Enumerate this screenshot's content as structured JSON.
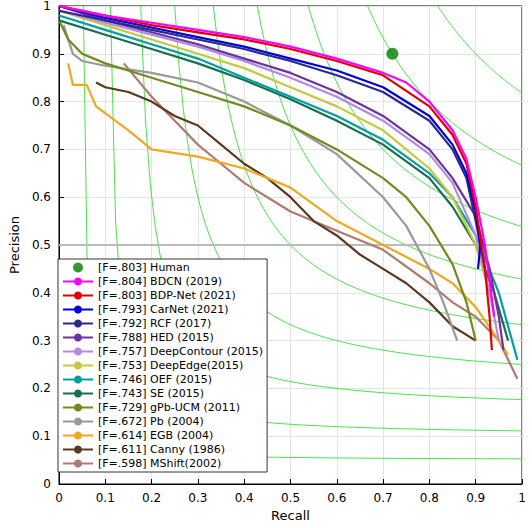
{
  "chart_data": {
    "type": "line",
    "x_label": "Recall",
    "y_label": "Precision",
    "xlim": [
      0,
      1
    ],
    "ylim": [
      0,
      1
    ],
    "xticks": [
      0,
      0.1,
      0.2,
      0.3,
      0.4,
      0.5,
      0.6,
      0.7,
      0.8,
      0.9,
      1
    ],
    "yticks": [
      0,
      0.1,
      0.2,
      0.3,
      0.4,
      0.5,
      0.6,
      0.7,
      0.8,
      0.9,
      1
    ],
    "grid": true,
    "legend": "lower left",
    "iso_f": [
      0.1,
      0.2,
      0.3,
      0.4,
      0.5,
      0.6,
      0.7,
      0.8,
      0.9
    ],
    "hline": 0.5,
    "series": [
      {
        "name": "[F=.803] Human",
        "type": "scatter",
        "marker": "circle",
        "color": "#008000",
        "x": [
          0.72
        ],
        "values": [
          0.9
        ]
      },
      {
        "name": "[F=.804] BDCN (2019)",
        "color": "#ff00ff",
        "x": [
          0,
          0.1,
          0.2,
          0.3,
          0.4,
          0.5,
          0.6,
          0.7,
          0.75,
          0.8,
          0.85,
          0.88,
          0.9,
          0.92,
          0.94
        ],
        "values": [
          1,
          0.98,
          0.965,
          0.95,
          0.935,
          0.915,
          0.89,
          0.86,
          0.84,
          0.8,
          0.74,
          0.68,
          0.6,
          0.5,
          0.35
        ]
      },
      {
        "name": "[F=.803] BDP-Net (2021)",
        "color": "#e00000",
        "x": [
          0,
          0.1,
          0.2,
          0.3,
          0.4,
          0.5,
          0.6,
          0.7,
          0.8,
          0.85,
          0.88,
          0.9,
          0.92,
          0.93,
          0.935
        ],
        "values": [
          1,
          0.98,
          0.96,
          0.945,
          0.93,
          0.91,
          0.885,
          0.855,
          0.79,
          0.73,
          0.67,
          0.58,
          0.45,
          0.35,
          0.28
        ]
      },
      {
        "name": "[F=.793] CarNet (2021)",
        "color": "#0000e0",
        "x": [
          0,
          0.1,
          0.2,
          0.3,
          0.4,
          0.5,
          0.6,
          0.7,
          0.8,
          0.85,
          0.88,
          0.9,
          0.91,
          0.905
        ],
        "values": [
          1,
          0.975,
          0.955,
          0.935,
          0.915,
          0.89,
          0.865,
          0.83,
          0.77,
          0.71,
          0.65,
          0.57,
          0.5,
          0.45
        ]
      },
      {
        "name": "[F=.792] RCF (2017)",
        "color": "#2a2a8a",
        "x": [
          0,
          0.1,
          0.2,
          0.3,
          0.4,
          0.5,
          0.6,
          0.7,
          0.8,
          0.85,
          0.88,
          0.9,
          0.92
        ],
        "values": [
          0.99,
          0.97,
          0.95,
          0.93,
          0.91,
          0.885,
          0.855,
          0.82,
          0.76,
          0.7,
          0.64,
          0.55,
          0.45
        ]
      },
      {
        "name": "[F=.788] HED (2015)",
        "color": "#7030a0",
        "x": [
          0,
          0.1,
          0.2,
          0.3,
          0.4,
          0.5,
          0.6,
          0.7,
          0.8,
          0.85,
          0.9,
          0.93,
          0.95,
          0.96
        ],
        "values": [
          1,
          0.97,
          0.945,
          0.92,
          0.89,
          0.86,
          0.82,
          0.77,
          0.7,
          0.64,
          0.56,
          0.45,
          0.35,
          0.28
        ]
      },
      {
        "name": "[F=.757] DeepContour (2015)",
        "color": "#b08ce0",
        "x": [
          0,
          0.1,
          0.2,
          0.3,
          0.4,
          0.5,
          0.6,
          0.7,
          0.8,
          0.85,
          0.9,
          0.93,
          0.95
        ],
        "values": [
          0.99,
          0.965,
          0.94,
          0.915,
          0.885,
          0.85,
          0.81,
          0.76,
          0.69,
          0.63,
          0.52,
          0.4,
          0.3
        ]
      },
      {
        "name": "[F=.753] DeepEdge(2015)",
        "color": "#c8c83c",
        "x": [
          0,
          0.1,
          0.2,
          0.3,
          0.4,
          0.5,
          0.6,
          0.7,
          0.8,
          0.85,
          0.9,
          0.93
        ],
        "values": [
          0.99,
          0.96,
          0.93,
          0.9,
          0.87,
          0.83,
          0.79,
          0.74,
          0.66,
          0.6,
          0.5,
          0.4
        ]
      },
      {
        "name": "[F=.746] OEF (2015)",
        "color": "#00a0a0",
        "x": [
          0,
          0.1,
          0.2,
          0.3,
          0.4,
          0.5,
          0.6,
          0.7,
          0.8,
          0.85,
          0.9,
          0.95,
          0.99
        ],
        "values": [
          0.98,
          0.95,
          0.92,
          0.89,
          0.85,
          0.81,
          0.77,
          0.72,
          0.65,
          0.6,
          0.52,
          0.4,
          0.26
        ]
      },
      {
        "name": "[F=.743] SE (2015)",
        "color": "#1a6e50",
        "x": [
          0,
          0.1,
          0.2,
          0.3,
          0.4,
          0.5,
          0.6,
          0.7,
          0.8,
          0.85,
          0.9,
          0.94,
          0.97
        ],
        "values": [
          0.97,
          0.94,
          0.91,
          0.88,
          0.845,
          0.805,
          0.76,
          0.71,
          0.64,
          0.58,
          0.5,
          0.4,
          0.3
        ]
      },
      {
        "name": "[F=.729] gPb-UCM (2011)",
        "color": "#6f8c1e",
        "x": [
          0,
          0.02,
          0.05,
          0.1,
          0.2,
          0.3,
          0.4,
          0.5,
          0.6,
          0.7,
          0.75,
          0.8,
          0.85,
          0.88,
          0.9
        ],
        "values": [
          0.97,
          0.93,
          0.9,
          0.88,
          0.85,
          0.82,
          0.79,
          0.75,
          0.7,
          0.64,
          0.6,
          0.54,
          0.46,
          0.38,
          0.3
        ]
      },
      {
        "name": "[F=.672] Pb (2004)",
        "color": "#999999",
        "x": [
          0.01,
          0.03,
          0.05,
          0.1,
          0.2,
          0.3,
          0.4,
          0.5,
          0.6,
          0.7,
          0.75,
          0.8,
          0.83,
          0.86
        ],
        "values": [
          0.96,
          0.9,
          0.885,
          0.875,
          0.86,
          0.84,
          0.8,
          0.75,
          0.69,
          0.6,
          0.54,
          0.45,
          0.38,
          0.3
        ]
      },
      {
        "name": "[F=.614] EGB (2004)",
        "color": "#f0a820",
        "x": [
          0.02,
          0.03,
          0.06,
          0.08,
          0.15,
          0.2,
          0.3,
          0.4,
          0.5,
          0.6,
          0.7,
          0.8,
          0.85,
          0.9,
          0.95,
          0.97
        ],
        "values": [
          0.88,
          0.835,
          0.835,
          0.79,
          0.74,
          0.7,
          0.685,
          0.66,
          0.62,
          0.55,
          0.5,
          0.45,
          0.42,
          0.37,
          0.3,
          0.27
        ]
      },
      {
        "name": "[F=.611] Canny (1986)",
        "color": "#5a3a1e",
        "x": [
          0.08,
          0.1,
          0.15,
          0.2,
          0.25,
          0.3,
          0.35,
          0.4,
          0.45,
          0.5,
          0.55,
          0.6,
          0.65,
          0.7,
          0.75,
          0.8,
          0.85,
          0.9
        ],
        "values": [
          0.84,
          0.83,
          0.82,
          0.8,
          0.77,
          0.75,
          0.71,
          0.67,
          0.64,
          0.6,
          0.55,
          0.52,
          0.48,
          0.45,
          0.42,
          0.38,
          0.33,
          0.3
        ]
      },
      {
        "name": "[F=.598] MShift(2002)",
        "color": "#b07a70",
        "x": [
          0.14,
          0.2,
          0.25,
          0.3,
          0.35,
          0.4,
          0.45,
          0.5,
          0.6,
          0.7,
          0.8,
          0.85,
          0.9,
          0.95,
          0.99
        ],
        "values": [
          0.88,
          0.81,
          0.76,
          0.71,
          0.67,
          0.63,
          0.6,
          0.57,
          0.53,
          0.49,
          0.42,
          0.38,
          0.35,
          0.3,
          0.22
        ]
      }
    ]
  }
}
